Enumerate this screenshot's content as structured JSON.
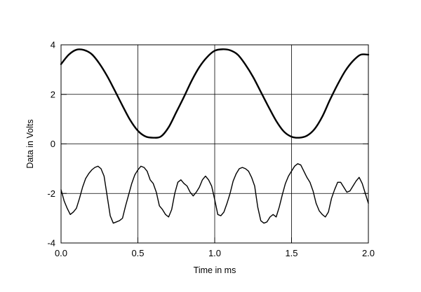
{
  "chart_data": {
    "type": "line",
    "title": "",
    "xlabel": "Time in ms",
    "ylabel": "Data in Volts",
    "xlim": [
      0.0,
      2.0
    ],
    "ylim": [
      -4,
      4
    ],
    "x_ticks": [
      "0.0",
      "0.5",
      "1.0",
      "1.5",
      "2.0"
    ],
    "y_ticks": [
      "4",
      "2",
      "0",
      "-2",
      "-4"
    ],
    "grid": true,
    "legend": "none",
    "series": [
      {
        "color": "#000000",
        "x": [
          0.0,
          0.05,
          0.1,
          0.15,
          0.2,
          0.25,
          0.3,
          0.35,
          0.4,
          0.45,
          0.5,
          0.55,
          0.6,
          0.65,
          0.7,
          0.75,
          0.8,
          0.85,
          0.9,
          0.95,
          1.0,
          1.05,
          1.1,
          1.15,
          1.2,
          1.25,
          1.3,
          1.35,
          1.4,
          1.45,
          1.5,
          1.55,
          1.6,
          1.65,
          1.7,
          1.75,
          1.8,
          1.85,
          1.9,
          1.95,
          2.0
        ],
        "values": [
          3.22,
          3.6,
          3.8,
          3.79,
          3.62,
          3.24,
          2.74,
          2.15,
          1.54,
          0.96,
          0.53,
          0.3,
          0.25,
          0.3,
          0.67,
          1.28,
          1.9,
          2.55,
          3.1,
          3.5,
          3.76,
          3.82,
          3.78,
          3.6,
          3.2,
          2.7,
          2.1,
          1.5,
          0.93,
          0.5,
          0.29,
          0.25,
          0.33,
          0.6,
          1.1,
          1.78,
          2.4,
          2.95,
          3.35,
          3.6,
          3.6
        ]
      },
      {
        "color": "#000000",
        "x": [
          0.0,
          0.02,
          0.04,
          0.06,
          0.08,
          0.1,
          0.12,
          0.14,
          0.16,
          0.18,
          0.2,
          0.22,
          0.24,
          0.26,
          0.28,
          0.3,
          0.32,
          0.34,
          0.36,
          0.38,
          0.4,
          0.42,
          0.44,
          0.46,
          0.48,
          0.5,
          0.52,
          0.54,
          0.56,
          0.58,
          0.6,
          0.62,
          0.64,
          0.66,
          0.68,
          0.7,
          0.72,
          0.74,
          0.76,
          0.78,
          0.8,
          0.82,
          0.84,
          0.86,
          0.88,
          0.9,
          0.92,
          0.94,
          0.96,
          0.98,
          1.0,
          1.02,
          1.04,
          1.06,
          1.08,
          1.1,
          1.12,
          1.14,
          1.16,
          1.18,
          1.2,
          1.22,
          1.24,
          1.26,
          1.28,
          1.3,
          1.32,
          1.34,
          1.36,
          1.38,
          1.4,
          1.42,
          1.44,
          1.46,
          1.48,
          1.5,
          1.52,
          1.54,
          1.56,
          1.58,
          1.6,
          1.62,
          1.64,
          1.66,
          1.68,
          1.7,
          1.72,
          1.74,
          1.76,
          1.78,
          1.8,
          1.82,
          1.84,
          1.86,
          1.88,
          1.9,
          1.92,
          1.94,
          1.96,
          1.98,
          2.0
        ],
        "values": [
          -1.85,
          -2.3,
          -2.6,
          -2.85,
          -2.75,
          -2.6,
          -2.2,
          -1.75,
          -1.4,
          -1.2,
          -1.05,
          -0.95,
          -0.9,
          -1.0,
          -1.3,
          -2.1,
          -2.9,
          -3.2,
          -3.15,
          -3.1,
          -3.0,
          -2.5,
          -2.05,
          -1.6,
          -1.25,
          -1.05,
          -0.9,
          -0.95,
          -1.1,
          -1.45,
          -1.6,
          -1.95,
          -2.5,
          -2.65,
          -2.85,
          -2.95,
          -2.65,
          -2.0,
          -1.55,
          -1.45,
          -1.6,
          -1.7,
          -1.95,
          -2.1,
          -1.95,
          -1.75,
          -1.45,
          -1.3,
          -1.45,
          -1.7,
          -2.25,
          -2.85,
          -2.9,
          -2.75,
          -2.4,
          -2.0,
          -1.5,
          -1.2,
          -1.0,
          -0.95,
          -1.0,
          -1.1,
          -1.35,
          -1.7,
          -2.55,
          -3.1,
          -3.2,
          -3.15,
          -2.95,
          -2.85,
          -2.95,
          -2.55,
          -2.05,
          -1.6,
          -1.3,
          -1.1,
          -0.9,
          -0.8,
          -0.85,
          -1.1,
          -1.35,
          -1.55,
          -1.9,
          -2.4,
          -2.7,
          -2.85,
          -2.95,
          -2.75,
          -2.2,
          -1.85,
          -1.55,
          -1.55,
          -1.75,
          -1.95,
          -1.9,
          -1.7,
          -1.5,
          -1.35,
          -1.6,
          -2.0,
          -2.4
        ]
      }
    ]
  }
}
